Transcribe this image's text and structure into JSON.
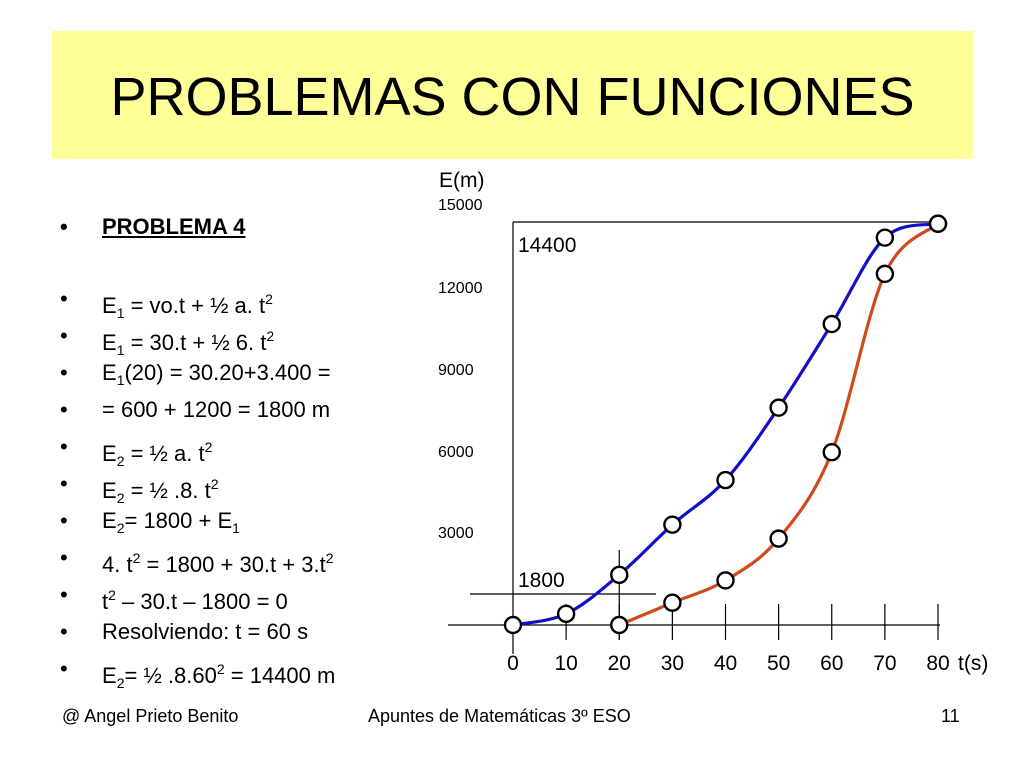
{
  "title": "PROBLEMAS CON FUNCIONES",
  "bullets": [
    {
      "parts": [
        {
          "t": "PROBLEMA 4"
        }
      ],
      "head": true
    },
    {
      "parts": [
        {
          "t": "E"
        },
        {
          "sub": "1"
        },
        {
          "t": " = vo.t + ½ a. t"
        },
        {
          "sup": "2"
        }
      ]
    },
    {
      "parts": [
        {
          "t": "E"
        },
        {
          "sub": "1"
        },
        {
          "t": " = 30.t + ½ 6. t"
        },
        {
          "sup": "2"
        }
      ]
    },
    {
      "parts": [
        {
          "t": "E"
        },
        {
          "sub": "1"
        },
        {
          "t": "(20) = 30.20+3.400 ="
        }
      ]
    },
    {
      "parts": [
        {
          "t": "= 600 + 1200 = 1800 m"
        }
      ]
    },
    {
      "parts": [
        {
          "t": "E"
        },
        {
          "sub": "2"
        },
        {
          "t": " = ½ a. t"
        },
        {
          "sup": "2"
        }
      ]
    },
    {
      "parts": [
        {
          "t": "E"
        },
        {
          "sub": "2"
        },
        {
          "t": " = ½ .8. t"
        },
        {
          "sup": "2"
        }
      ]
    },
    {
      "parts": [
        {
          "t": "E"
        },
        {
          "sub": "2"
        },
        {
          "t": "= 1800 + E"
        },
        {
          "sub": "1"
        }
      ]
    },
    {
      "parts": [
        {
          "t": "4. t"
        },
        {
          "sup": "2"
        },
        {
          "t": " = 1800 + 30.t + 3.t"
        },
        {
          "sup": "2"
        }
      ]
    },
    {
      "parts": [
        {
          "t": "t"
        },
        {
          "sup": "2"
        },
        {
          "t": " – 30.t – 1800 = 0"
        }
      ]
    },
    {
      "parts": [
        {
          "t": "Resolviendo: t = 60 s"
        }
      ]
    },
    {
      "parts": [
        {
          "t": "E"
        },
        {
          "sub": "2"
        },
        {
          "t": "= ½ .8.60"
        },
        {
          "sup": "2"
        },
        {
          "t": " = 14400 m"
        }
      ]
    }
  ],
  "chart_data": {
    "type": "line",
    "ylabel": "E(m)",
    "xlabel": "t(s)",
    "xlim": [
      0,
      80
    ],
    "ylim": [
      0,
      15000
    ],
    "y_ticks": [
      "15000",
      "12000",
      "9000",
      "6000",
      "3000"
    ],
    "x_ticks": [
      "0",
      "10",
      "20",
      "30",
      "40",
      "50",
      "60",
      "70",
      "80"
    ],
    "annotations": [
      "14400",
      "1800"
    ],
    "series": [
      {
        "color": "#1010C8",
        "points": [
          [
            0,
            0
          ],
          [
            10,
            400
          ],
          [
            20,
            1800
          ],
          [
            30,
            3600
          ],
          [
            40,
            5200
          ],
          [
            50,
            7800
          ],
          [
            60,
            10800
          ],
          [
            70,
            13900
          ],
          [
            80,
            14400
          ]
        ]
      },
      {
        "color": "#D04A1C",
        "points": [
          [
            20,
            0
          ],
          [
            30,
            800
          ],
          [
            40,
            1600
          ],
          [
            50,
            3100
          ],
          [
            60,
            6200
          ],
          [
            70,
            12600
          ],
          [
            80,
            14400
          ]
        ]
      }
    ]
  },
  "footer": {
    "author": "@ Angel Prieto Benito",
    "course": "Apuntes de Matemáticas 3º ESO",
    "page": "11"
  }
}
